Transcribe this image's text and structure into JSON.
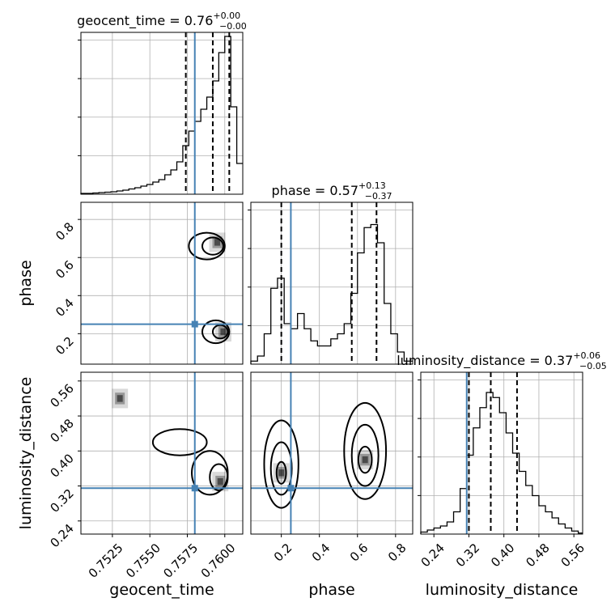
{
  "colors": {
    "truth": "#4682b4",
    "contour": "#000000",
    "scatter": "#808080",
    "grid": "#b0b0b0"
  },
  "chart_data": {
    "type": "corner",
    "grid": true,
    "parameters": [
      {
        "name": "geocent_time",
        "label": "geocent_time",
        "range": [
          0.7504,
          0.7612
        ],
        "ticks": [
          0.7525,
          0.755,
          0.7575,
          0.76
        ],
        "tick_labels": [
          "0.7525",
          "0.7550",
          "0.7575",
          "0.7600"
        ],
        "truth": 0.758,
        "quantiles": [
          0.7574,
          0.7592,
          0.7603
        ],
        "title": {
          "base": "geocent_time = 0.76",
          "plus": "+0.00",
          "minus": "−0.00"
        },
        "histogram": {
          "edges": [
            0.7504,
            0.7508,
            0.7512,
            0.7516,
            0.752,
            0.7524,
            0.7528,
            0.7532,
            0.7536,
            0.754,
            0.7544,
            0.7548,
            0.7552,
            0.7556,
            0.756,
            0.7564,
            0.7568,
            0.7572,
            0.7576,
            0.758,
            0.7584,
            0.7588,
            0.7592,
            0.7596,
            0.76,
            0.7604,
            0.7608,
            0.7612
          ],
          "counts": [
            1,
            1,
            1.5,
            2,
            2.5,
            3,
            4,
            5,
            6.5,
            8,
            10,
            12,
            15,
            18,
            24,
            30,
            40,
            60,
            78,
            90,
            105,
            120,
            140,
            175,
            195,
            108,
            38
          ]
        },
        "hist_ylim": [
          0,
          200
        ]
      },
      {
        "name": "phase",
        "label": "phase",
        "range": [
          0.04,
          0.89
        ],
        "ticks": [
          0.2,
          0.4,
          0.6,
          0.8
        ],
        "tick_labels": [
          "0.2",
          "0.4",
          "0.6",
          "0.8"
        ],
        "truth": 0.25,
        "quantiles": [
          0.2,
          0.57,
          0.7
        ],
        "title": {
          "base": "phase = 0.57",
          "plus": "+0.13",
          "minus": "−0.37"
        },
        "histogram": {
          "edges": [
            0.04,
            0.075,
            0.11,
            0.145,
            0.18,
            0.215,
            0.25,
            0.285,
            0.32,
            0.355,
            0.39,
            0.425,
            0.46,
            0.495,
            0.53,
            0.565,
            0.6,
            0.635,
            0.67,
            0.705,
            0.74,
            0.775,
            0.81,
            0.845,
            0.89
          ],
          "counts": [
            3,
            8,
            30,
            75,
            85,
            40,
            35,
            50,
            35,
            23,
            18,
            18,
            25,
            30,
            40,
            70,
            110,
            135,
            138,
            120,
            60,
            30,
            12,
            3
          ]
        },
        "hist_ylim": [
          0,
          160
        ]
      },
      {
        "name": "luminosity_distance",
        "label": "luminosity_distance",
        "range": [
          0.21,
          0.58
        ],
        "ticks": [
          0.24,
          0.32,
          0.4,
          0.48,
          0.56
        ],
        "tick_labels": [
          "0.24",
          "0.32",
          "0.40",
          "0.48",
          "0.56"
        ],
        "truth": 0.315,
        "quantiles": [
          0.32,
          0.37,
          0.43
        ],
        "title": {
          "base": "luminosity_distance = 0.37",
          "plus": "+0.06",
          "minus": "−0.05"
        },
        "histogram": {
          "edges": [
            0.21,
            0.225,
            0.24,
            0.255,
            0.27,
            0.285,
            0.3,
            0.315,
            0.33,
            0.345,
            0.36,
            0.375,
            0.39,
            0.405,
            0.42,
            0.435,
            0.45,
            0.465,
            0.48,
            0.495,
            0.51,
            0.525,
            0.54,
            0.555,
            0.57,
            0.58
          ],
          "counts": [
            2,
            4,
            6,
            8,
            12,
            22,
            45,
            78,
            105,
            125,
            140,
            135,
            120,
            100,
            80,
            62,
            48,
            38,
            28,
            22,
            16,
            10,
            6,
            3,
            1
          ]
        },
        "hist_ylim": [
          0,
          160
        ]
      }
    ],
    "density_peaks": {
      "geocent_time-phase": [
        [
          0.7599,
          0.21
        ],
        [
          0.7595,
          0.68
        ]
      ],
      "geocent_time-luminosity_distance": [
        [
          0.7597,
          0.33
        ],
        [
          0.753,
          0.52
        ]
      ],
      "phase-luminosity_distance": [
        [
          0.2,
          0.35
        ],
        [
          0.64,
          0.38
        ]
      ]
    }
  }
}
